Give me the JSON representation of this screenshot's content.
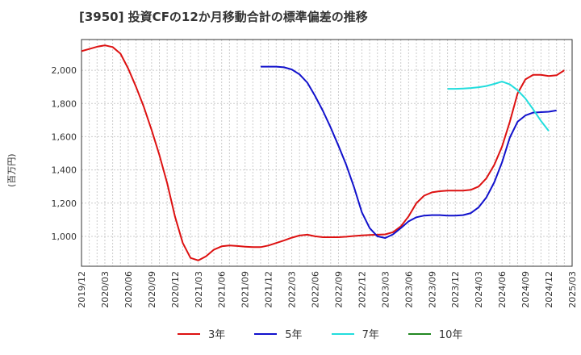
{
  "chart_data": {
    "type": "line",
    "title": "[3950]  投資CFの12か月移動合計の標準偏差の推移",
    "ylabel": "(百万円)",
    "xlabel": "",
    "x_ticks": [
      "2019/12",
      "2020/03",
      "2020/06",
      "2020/09",
      "2020/12",
      "2021/03",
      "2021/06",
      "2021/09",
      "2021/12",
      "2022/03",
      "2022/06",
      "2022/09",
      "2022/12",
      "2023/03",
      "2023/06",
      "2023/09",
      "2023/12",
      "2024/03",
      "2024/06",
      "2024/09",
      "2024/12",
      "2025/03"
    ],
    "y_ticks": [
      1000,
      1200,
      1400,
      1600,
      1800,
      2000
    ],
    "y_tick_labels": [
      "1,000",
      "1,200",
      "1,400",
      "1,600",
      "1,800",
      "2,000"
    ],
    "ylim": [
      820,
      2185
    ],
    "xlim": [
      "2019/12",
      "2025/03"
    ],
    "grid": true,
    "legend_position": "bottom",
    "series": [
      {
        "name": "3年",
        "color": "#dd1111",
        "start": "2019/12",
        "values": [
          2115,
          2128,
          2142,
          2150,
          2140,
          2100,
          2010,
          1900,
          1780,
          1640,
          1490,
          1320,
          1120,
          960,
          870,
          855,
          880,
          920,
          940,
          945,
          942,
          938,
          935,
          935,
          945,
          960,
          975,
          992,
          1005,
          1010,
          1000,
          995,
          995,
          995,
          998,
          1002,
          1006,
          1008,
          1010,
          1012,
          1025,
          1060,
          1120,
          1200,
          1245,
          1265,
          1272,
          1275,
          1275,
          1275,
          1280,
          1300,
          1350,
          1430,
          1540,
          1690,
          1860,
          1945,
          1972,
          1972,
          1965,
          1970,
          2000
        ]
      },
      {
        "name": "5年",
        "color": "#1111cc",
        "start": "2021/11",
        "values": [
          2022,
          2022,
          2022,
          2018,
          2005,
          1975,
          1925,
          1845,
          1755,
          1655,
          1545,
          1430,
          1295,
          1145,
          1050,
          1000,
          990,
          1012,
          1050,
          1090,
          1115,
          1125,
          1128,
          1128,
          1125,
          1125,
          1128,
          1140,
          1175,
          1235,
          1325,
          1445,
          1595,
          1690,
          1728,
          1745,
          1748,
          1750,
          1758
        ]
      },
      {
        "name": "7年",
        "color": "#22dddd",
        "start": "2023/11",
        "values": [
          1888,
          1888,
          1890,
          1893,
          1898,
          1905,
          1918,
          1932,
          1915,
          1880,
          1830,
          1765,
          1695,
          1635
        ]
      },
      {
        "name": "10年",
        "color": "#228822",
        "start": "2024/12",
        "values": []
      }
    ]
  }
}
